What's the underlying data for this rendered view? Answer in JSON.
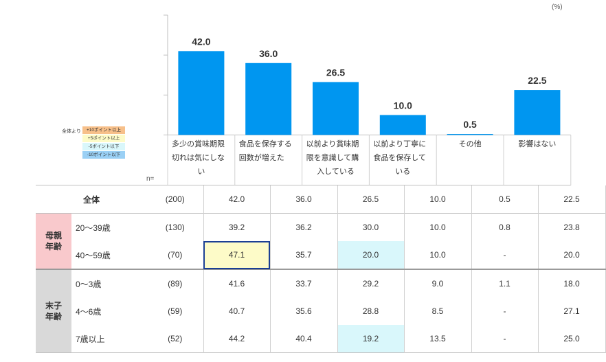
{
  "unit": "(%)",
  "legend": {
    "label": "全体より",
    "items": [
      {
        "text": "+10ポイント以上",
        "color": "#f7c08a"
      },
      {
        "text": "+5ポイント以上",
        "color": "#fdfbc8"
      },
      {
        "text": "-5ポイント以下",
        "color": "#d9f7fb"
      },
      {
        "text": "-10ポイント以下",
        "color": "#9ad0f5"
      }
    ]
  },
  "chart_data": {
    "type": "bar",
    "categories": [
      "多少の賞味期限切れは気にしない",
      "食品を保存する回数が増えた",
      "以前より賞味期限を意識して購入している",
      "以前より丁寧に食品を保存している",
      "その他",
      "影響はない"
    ],
    "values": [
      42.0,
      36.0,
      26.5,
      10.0,
      0.5,
      22.5
    ],
    "value_labels": [
      "42.0",
      "36.0",
      "26.5",
      "10.0",
      "0.5",
      "22.5"
    ],
    "bar_color": "#0096f0",
    "ylim": [
      0,
      60
    ],
    "grid": false
  },
  "category_lines": [
    [
      "多少の賞味期限",
      "切れは気にしな",
      "い"
    ],
    [
      "食品を保存する",
      "回数が増えた"
    ],
    [
      "以前より賞味期",
      "限を意識して購",
      "入している"
    ],
    [
      "以前より丁寧に",
      "食品を保存して",
      "いる"
    ],
    [
      "その他"
    ],
    [
      "影響はない"
    ]
  ],
  "n_label": "n=",
  "rows": [
    {
      "group": "",
      "name": "全体",
      "n": "(200)",
      "cells": [
        "42.0",
        "36.0",
        "26.5",
        "10.0",
        "0.5",
        "22.5"
      ],
      "hl": [
        "",
        "",
        "",
        "",
        "",
        ""
      ]
    },
    {
      "group": "母親年齢",
      "group_lines": [
        "母親",
        "年齢"
      ],
      "group_color": "#f9c9cc",
      "name": "20～39歳",
      "n": "(130)",
      "cells": [
        "39.2",
        "36.2",
        "30.0",
        "10.0",
        "0.8",
        "23.8"
      ],
      "hl": [
        "",
        "",
        "",
        "",
        "",
        ""
      ]
    },
    {
      "group": "母親年齢",
      "name": "40～59歳",
      "n": "(70)",
      "cells": [
        "47.1",
        "35.7",
        "20.0",
        "10.0",
        "-",
        "20.0"
      ],
      "hl": [
        "yellow",
        "",
        "cyan",
        "",
        "",
        ""
      ]
    },
    {
      "group": "末子年齢",
      "group_lines": [
        "末子",
        "年齢"
      ],
      "group_color": "#d9d9d9",
      "name": "0～3歳",
      "n": "(89)",
      "cells": [
        "41.6",
        "33.7",
        "29.2",
        "9.0",
        "1.1",
        "18.0"
      ],
      "hl": [
        "",
        "",
        "",
        "",
        "",
        ""
      ]
    },
    {
      "group": "末子年齢",
      "name": "4～6歳",
      "n": "(59)",
      "cells": [
        "40.7",
        "35.6",
        "28.8",
        "8.5",
        "-",
        "27.1"
      ],
      "hl": [
        "",
        "",
        "",
        "",
        "",
        ""
      ]
    },
    {
      "group": "末子年齢",
      "name": "7歳以上",
      "n": "(52)",
      "cells": [
        "44.2",
        "40.4",
        "19.2",
        "13.5",
        "-",
        "25.0"
      ],
      "hl": [
        "",
        "",
        "cyan",
        "",
        "",
        ""
      ]
    }
  ]
}
